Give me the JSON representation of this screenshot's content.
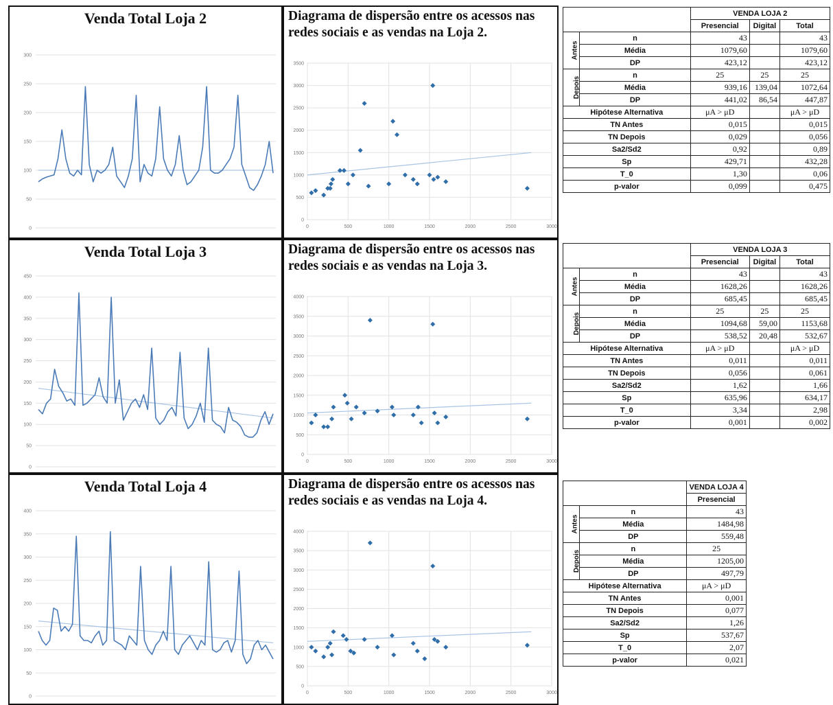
{
  "line_charts": [
    {
      "title": "Venda Total Loja 2",
      "y_ticks": [
        "300",
        "250",
        "200",
        "150",
        "100",
        "50",
        "0"
      ],
      "trend": [
        100,
        100
      ],
      "chart_data": {
        "type": "line",
        "title": "Venda Total Loja 2",
        "ylim": [
          0,
          300
        ],
        "values": [
          80,
          85,
          88,
          90,
          92,
          120,
          170,
          120,
          95,
          90,
          100,
          92,
          245,
          110,
          80,
          100,
          95,
          100,
          110,
          140,
          90,
          80,
          70,
          90,
          120,
          230,
          80,
          110,
          95,
          90,
          120,
          210,
          120,
          100,
          90,
          110,
          160,
          100,
          75,
          80,
          90,
          100,
          140,
          245,
          100,
          95,
          95,
          100,
          110,
          120,
          140,
          230,
          110,
          90,
          70,
          65,
          75,
          90,
          110,
          150,
          95
        ],
        "trend": {
          "start": 100,
          "end": 100
        }
      }
    },
    {
      "title": "Venda Total Loja 3",
      "y_ticks": [
        "450",
        "400",
        "350",
        "300",
        "250",
        "200",
        "150",
        "100",
        "50",
        "0"
      ],
      "trend": [
        185,
        115
      ],
      "chart_data": {
        "type": "line",
        "title": "Venda Total Loja 3",
        "ylim": [
          0,
          450
        ],
        "values": [
          135,
          125,
          150,
          160,
          230,
          190,
          175,
          155,
          160,
          145,
          410,
          145,
          150,
          160,
          170,
          210,
          165,
          150,
          400,
          150,
          205,
          110,
          130,
          150,
          160,
          140,
          170,
          135,
          280,
          115,
          100,
          110,
          130,
          140,
          120,
          270,
          115,
          90,
          100,
          120,
          150,
          105,
          280,
          110,
          100,
          95,
          80,
          140,
          110,
          105,
          95,
          75,
          70,
          70,
          80,
          110,
          130,
          100,
          125
        ],
        "trend": {
          "start": 185,
          "end": 115
        }
      }
    },
    {
      "title": "Venda Total Loja 4",
      "y_ticks": [
        "400",
        "350",
        "300",
        "250",
        "200",
        "150",
        "100",
        "50",
        "0"
      ],
      "trend": [
        162,
        115
      ],
      "chart_data": {
        "type": "line",
        "title": "Venda Total Loja 4",
        "ylim": [
          0,
          400
        ],
        "values": [
          140,
          120,
          110,
          120,
          190,
          185,
          140,
          150,
          140,
          155,
          345,
          130,
          120,
          120,
          115,
          130,
          140,
          110,
          120,
          355,
          120,
          115,
          110,
          100,
          130,
          120,
          110,
          280,
          120,
          100,
          90,
          110,
          120,
          140,
          120,
          280,
          100,
          90,
          110,
          120,
          130,
          115,
          100,
          120,
          110,
          290,
          100,
          95,
          100,
          115,
          120,
          95,
          120,
          270,
          90,
          70,
          80,
          110,
          120,
          100,
          110,
          95,
          80
        ],
        "trend": {
          "start": 162,
          "end": 115
        }
      }
    }
  ],
  "scatter_charts": [
    {
      "title": "Diagrama de dispersão entre os acessos nas redes sociais e as vendas na Loja 2.",
      "y_ticks": [
        "3500",
        "3000",
        "2500",
        "2000",
        "1500",
        "1000",
        "500",
        "0"
      ],
      "x_ticks": [
        "0",
        "500",
        "1000",
        "1500",
        "2000",
        "2500",
        "3000"
      ],
      "chart_data": {
        "type": "scatter",
        "title": "Diagrama de dispersão entre os acessos nas redes sociais e as vendas na Loja 2.",
        "xlim": [
          0,
          3000
        ],
        "ylim": [
          0,
          3500
        ],
        "points": [
          [
            50,
            600
          ],
          [
            100,
            650
          ],
          [
            200,
            550
          ],
          [
            250,
            700
          ],
          [
            280,
            700
          ],
          [
            290,
            800
          ],
          [
            310,
            900
          ],
          [
            400,
            1100
          ],
          [
            450,
            1100
          ],
          [
            500,
            800
          ],
          [
            560,
            1000
          ],
          [
            650,
            1550
          ],
          [
            700,
            2600
          ],
          [
            750,
            750
          ],
          [
            1000,
            800
          ],
          [
            1050,
            2200
          ],
          [
            1100,
            1900
          ],
          [
            1200,
            1000
          ],
          [
            1300,
            900
          ],
          [
            1350,
            800
          ],
          [
            1500,
            1000
          ],
          [
            1540,
            3000
          ],
          [
            1550,
            900
          ],
          [
            1600,
            950
          ],
          [
            1700,
            850
          ],
          [
            2700,
            700
          ]
        ],
        "trend": [
          [
            0,
            1000
          ],
          [
            2750,
            1500
          ]
        ]
      }
    },
    {
      "title": "Diagrama de dispersão entre os acessos nas redes sociais e as vendas na Loja 3.",
      "y_ticks": [
        "4000",
        "3500",
        "3000",
        "2500",
        "2000",
        "1500",
        "1000",
        "500",
        "0"
      ],
      "x_ticks": [
        "0",
        "500",
        "1000",
        "1500",
        "2000",
        "2500",
        "3000"
      ],
      "chart_data": {
        "type": "scatter",
        "title": "Diagrama de dispersão entre os acessos nas redes sociais e as vendas na Loja 3.",
        "xlim": [
          0,
          3000
        ],
        "ylim": [
          0,
          4000
        ],
        "points": [
          [
            50,
            800
          ],
          [
            100,
            1000
          ],
          [
            200,
            700
          ],
          [
            250,
            700
          ],
          [
            300,
            900
          ],
          [
            320,
            1200
          ],
          [
            460,
            1500
          ],
          [
            490,
            1300
          ],
          [
            540,
            900
          ],
          [
            600,
            1200
          ],
          [
            700,
            1050
          ],
          [
            770,
            3400
          ],
          [
            860,
            1100
          ],
          [
            1040,
            1200
          ],
          [
            1060,
            1000
          ],
          [
            1300,
            1000
          ],
          [
            1360,
            1200
          ],
          [
            1400,
            800
          ],
          [
            1540,
            3300
          ],
          [
            1560,
            1050
          ],
          [
            1600,
            800
          ],
          [
            1700,
            950
          ],
          [
            2700,
            900
          ]
        ],
        "trend": [
          [
            0,
            1050
          ],
          [
            2750,
            1300
          ]
        ]
      }
    },
    {
      "title": "Diagrama de dispersão entre os acessos nas redes sociais e as vendas na Loja 4.",
      "y_ticks": [
        "4000",
        "3500",
        "3000",
        "2500",
        "2000",
        "1500",
        "1000",
        "500",
        "0"
      ],
      "x_ticks": [
        "0",
        "500",
        "1000",
        "1500",
        "2000",
        "2500",
        "3000"
      ],
      "chart_data": {
        "type": "scatter",
        "title": "Diagrama de dispersão entre os acessos nas redes sociais e as vendas na Loja 4.",
        "xlim": [
          0,
          3000
        ],
        "ylim": [
          0,
          4000
        ],
        "points": [
          [
            50,
            1000
          ],
          [
            100,
            900
          ],
          [
            200,
            750
          ],
          [
            250,
            1000
          ],
          [
            280,
            1100
          ],
          [
            300,
            800
          ],
          [
            320,
            1400
          ],
          [
            440,
            1300
          ],
          [
            480,
            1200
          ],
          [
            530,
            900
          ],
          [
            570,
            850
          ],
          [
            700,
            1200
          ],
          [
            770,
            3700
          ],
          [
            860,
            1000
          ],
          [
            1040,
            1300
          ],
          [
            1060,
            800
          ],
          [
            1300,
            1100
          ],
          [
            1350,
            900
          ],
          [
            1440,
            700
          ],
          [
            1540,
            3100
          ],
          [
            1560,
            1200
          ],
          [
            1600,
            1150
          ],
          [
            1700,
            1000
          ],
          [
            2700,
            1050
          ]
        ],
        "trend": [
          [
            0,
            1150
          ],
          [
            2750,
            1400
          ]
        ]
      }
    }
  ],
  "tables": [
    {
      "title": "VENDA LOJA 2",
      "col_headers": [
        "Presencial",
        "Digital",
        "Total"
      ],
      "groups": [
        "Antes",
        "Depois"
      ],
      "rows": [
        {
          "label": "n",
          "vals": [
            "43",
            "",
            "43"
          ]
        },
        {
          "label": "Média",
          "vals": [
            "1079,60",
            "",
            "1079,60"
          ]
        },
        {
          "label": "DP",
          "vals": [
            "423,12",
            "",
            "423,12"
          ]
        },
        {
          "label": "n",
          "vals": [
            "25",
            "25",
            "25"
          ]
        },
        {
          "label": "Média",
          "vals": [
            "939,16",
            "139,04",
            "1072,64"
          ]
        },
        {
          "label": "DP",
          "vals": [
            "441,02",
            "86,54",
            "447,87"
          ]
        },
        {
          "label": "Hipótese Alternativa",
          "vals": [
            "μA > μD",
            "",
            "μA > μD"
          ]
        },
        {
          "label": "TN Antes",
          "vals": [
            "0,015",
            "",
            "0,015"
          ]
        },
        {
          "label": "TN Depois",
          "vals": [
            "0,029",
            "",
            "0,056"
          ]
        },
        {
          "label": "Sa2/Sd2",
          "vals": [
            "0,92",
            "",
            "0,89"
          ]
        },
        {
          "label": "Sp",
          "vals": [
            "429,71",
            "",
            "432,28"
          ]
        },
        {
          "label": "T_0",
          "vals": [
            "1,30",
            "",
            "0,06"
          ]
        },
        {
          "label": "p-valor",
          "vals": [
            "0,099",
            "",
            "0,475"
          ]
        }
      ]
    },
    {
      "title": "VENDA LOJA 3",
      "col_headers": [
        "Presencial",
        "Digital",
        "Total"
      ],
      "groups": [
        "Antes",
        "Depois"
      ],
      "rows": [
        {
          "label": "n",
          "vals": [
            "43",
            "",
            "43"
          ]
        },
        {
          "label": "Média",
          "vals": [
            "1628,26",
            "",
            "1628,26"
          ]
        },
        {
          "label": "DP",
          "vals": [
            "685,45",
            "",
            "685,45"
          ]
        },
        {
          "label": "n",
          "vals": [
            "25",
            "25",
            "25"
          ]
        },
        {
          "label": "Média",
          "vals": [
            "1094,68",
            "59,00",
            "1153,68"
          ]
        },
        {
          "label": "DP",
          "vals": [
            "538,52",
            "20,48",
            "532,67"
          ]
        },
        {
          "label": "Hipótese Alternativa",
          "vals": [
            "μA > μD",
            "",
            "μA > μD"
          ]
        },
        {
          "label": "TN Antes",
          "vals": [
            "0,011",
            "",
            "0,011"
          ]
        },
        {
          "label": "TN Depois",
          "vals": [
            "0,056",
            "",
            "0,061"
          ]
        },
        {
          "label": "Sa2/Sd2",
          "vals": [
            "1,62",
            "",
            "1,66"
          ]
        },
        {
          "label": "Sp",
          "vals": [
            "635,96",
            "",
            "634,17"
          ]
        },
        {
          "label": "T_0",
          "vals": [
            "3,34",
            "",
            "2,98"
          ]
        },
        {
          "label": "p-valor",
          "vals": [
            "0,001",
            "",
            "0,002"
          ]
        }
      ]
    },
    {
      "title": "VENDA LOJA 4",
      "col_headers": [
        "Presencial"
      ],
      "groups": [
        "Antes",
        "Depois"
      ],
      "rows": [
        {
          "label": "n",
          "vals": [
            "43"
          ]
        },
        {
          "label": "Média",
          "vals": [
            "1484,98"
          ]
        },
        {
          "label": "DP",
          "vals": [
            "559,48"
          ]
        },
        {
          "label": "n",
          "vals": [
            "25"
          ]
        },
        {
          "label": "Média",
          "vals": [
            "1205,00"
          ]
        },
        {
          "label": "DP",
          "vals": [
            "497,79"
          ]
        },
        {
          "label": "Hipótese Alternativa",
          "vals": [
            "μA > μD"
          ]
        },
        {
          "label": "TN Antes",
          "vals": [
            "0,001"
          ]
        },
        {
          "label": "TN Depois",
          "vals": [
            "0,077"
          ]
        },
        {
          "label": "Sa2/Sd2",
          "vals": [
            "1,26"
          ]
        },
        {
          "label": "Sp",
          "vals": [
            "537,67"
          ]
        },
        {
          "label": "T_0",
          "vals": [
            "2,07"
          ]
        },
        {
          "label": "p-valor",
          "vals": [
            "0,021"
          ]
        }
      ]
    }
  ],
  "colors": {
    "line": "#4a7bb7",
    "trend": "#a9c4e4",
    "point": "#2f6ea8",
    "grid": "#e2e2e2"
  }
}
